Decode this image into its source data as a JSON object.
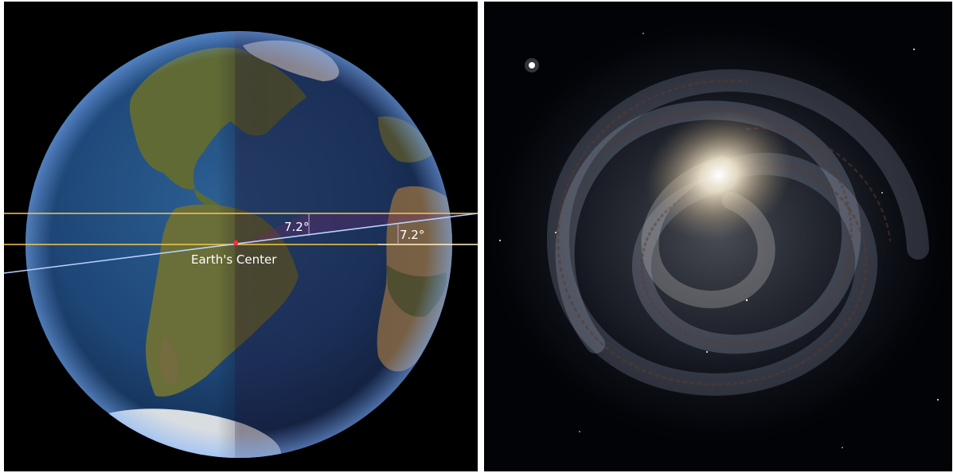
{
  "left_panel": {
    "angle_label_1": "7.2°",
    "angle_label_2": "7.2°",
    "center_label": "Earth's Center",
    "colors": {
      "sun_ray": "#f2c94c",
      "tilted_line": "#b9d3ff",
      "center_dot": "#ff2a3a"
    }
  },
  "right_panel": {
    "colors": {
      "core": "#f3e8cf",
      "arms": "#aeb8cc",
      "dust": "#5a3a2e"
    }
  }
}
